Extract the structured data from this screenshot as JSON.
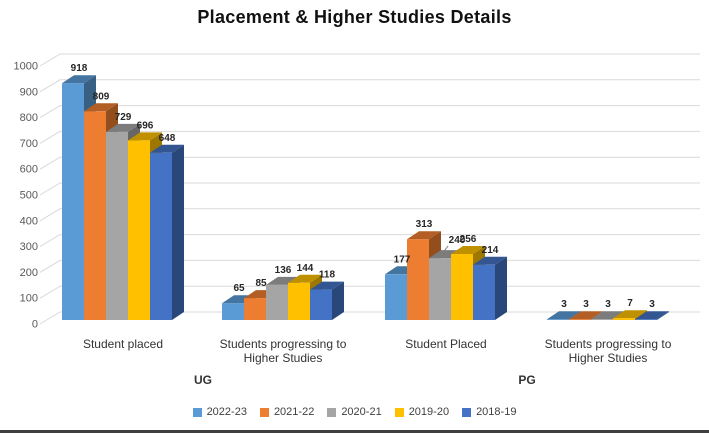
{
  "title": "Placement & Higher Studies Details",
  "chart_data": {
    "type": "bar",
    "style": "3d-clustered-column",
    "title": "Placement & Higher Studies Details",
    "categories": [
      "Student placed",
      "Students progressing to Higher Studies",
      "Student Placed",
      "Students progressing to Higher Studies"
    ],
    "group_spans": [
      {
        "label": "UG",
        "categories": [
          0,
          1
        ]
      },
      {
        "label": "PG",
        "categories": [
          2,
          3
        ]
      }
    ],
    "series": [
      {
        "name": "2022-23",
        "color": "#5B9BD5",
        "values": [
          918,
          65,
          177,
          3
        ]
      },
      {
        "name": "2021-22",
        "color": "#ED7D31",
        "values": [
          809,
          85,
          313,
          3
        ]
      },
      {
        "name": "2020-21",
        "color": "#A5A5A5",
        "values": [
          729,
          136,
          240,
          3
        ]
      },
      {
        "name": "2019-20",
        "color": "#FFC000",
        "values": [
          696,
          144,
          256,
          7
        ]
      },
      {
        "name": "2018-19",
        "color": "#4472C4",
        "values": [
          648,
          118,
          214,
          3
        ]
      }
    ],
    "ylim": [
      0,
      1000
    ],
    "ytick_step": 100,
    "grid": true,
    "data_labels": true,
    "legend_position": "bottom",
    "callout": {
      "category_index": 2,
      "series_index": 2,
      "label": "240",
      "dx": 11,
      "dy": -3
    }
  },
  "colors": {
    "grid": "#D9D9D9",
    "axis_text": "#595959",
    "value_label_text": "#262626",
    "category_text": "#333333",
    "callout_line": "#808080",
    "bottom_rule": "#3F3F3F"
  }
}
